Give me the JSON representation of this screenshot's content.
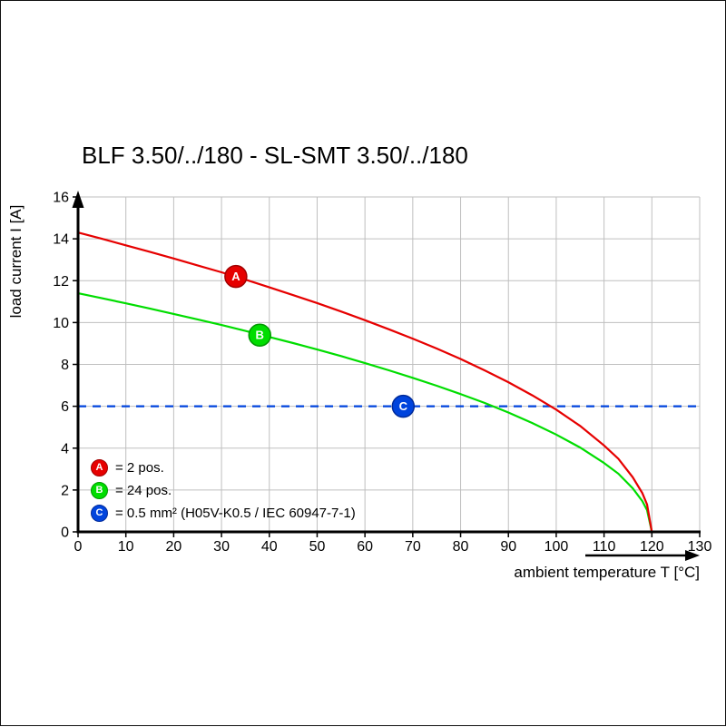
{
  "title": "BLF 3.50/../180 - SL-SMT 3.50/../180",
  "chart_data": {
    "type": "line",
    "title": "BLF 3.50/../180 - SL-SMT 3.50/../180",
    "xlabel": "ambient temperature T [°C]",
    "ylabel": "load current I [A]",
    "xlim": [
      0,
      130
    ],
    "ylim": [
      0,
      16
    ],
    "xticks": [
      0,
      10,
      20,
      30,
      40,
      50,
      60,
      70,
      80,
      90,
      100,
      110,
      120,
      130
    ],
    "yticks": [
      0,
      2,
      4,
      6,
      8,
      10,
      12,
      14,
      16
    ],
    "grid": true,
    "legend_position": "bottom-left-inside",
    "series": [
      {
        "name": "A",
        "legend_label": "= 2 pos.",
        "color": "#e60000",
        "edge_color": "#a00000",
        "style": "solid",
        "marker": {
          "letter": "A",
          "x": 33,
          "y": 12.2
        },
        "points": [
          [
            0,
            14.3
          ],
          [
            5,
            14.0
          ],
          [
            10,
            13.69
          ],
          [
            15,
            13.38
          ],
          [
            20,
            13.06
          ],
          [
            25,
            12.73
          ],
          [
            30,
            12.4
          ],
          [
            35,
            12.05
          ],
          [
            40,
            11.68
          ],
          [
            45,
            11.31
          ],
          [
            50,
            10.93
          ],
          [
            55,
            10.53
          ],
          [
            60,
            10.11
          ],
          [
            65,
            9.68
          ],
          [
            70,
            9.23
          ],
          [
            75,
            8.76
          ],
          [
            80,
            8.26
          ],
          [
            85,
            7.72
          ],
          [
            90,
            7.15
          ],
          [
            95,
            6.52
          ],
          [
            100,
            5.84
          ],
          [
            105,
            5.06
          ],
          [
            110,
            4.13
          ],
          [
            113,
            3.49
          ],
          [
            116,
            2.61
          ],
          [
            118,
            1.85
          ],
          [
            119,
            1.31
          ],
          [
            120,
            0
          ]
        ]
      },
      {
        "name": "B",
        "legend_label": "= 24 pos.",
        "color": "#00dd00",
        "edge_color": "#009900",
        "style": "solid",
        "marker": {
          "letter": "B",
          "x": 38,
          "y": 9.4
        },
        "points": [
          [
            0,
            11.4
          ],
          [
            5,
            11.16
          ],
          [
            10,
            10.92
          ],
          [
            15,
            10.67
          ],
          [
            20,
            10.41
          ],
          [
            25,
            10.15
          ],
          [
            30,
            9.88
          ],
          [
            35,
            9.6
          ],
          [
            40,
            9.31
          ],
          [
            45,
            9.02
          ],
          [
            50,
            8.71
          ],
          [
            55,
            8.4
          ],
          [
            60,
            8.06
          ],
          [
            65,
            7.72
          ],
          [
            70,
            7.36
          ],
          [
            75,
            6.98
          ],
          [
            80,
            6.58
          ],
          [
            85,
            6.16
          ],
          [
            90,
            5.7
          ],
          [
            95,
            5.2
          ],
          [
            100,
            4.65
          ],
          [
            105,
            4.03
          ],
          [
            110,
            3.29
          ],
          [
            113,
            2.78
          ],
          [
            116,
            2.08
          ],
          [
            118,
            1.47
          ],
          [
            119,
            1.04
          ],
          [
            120,
            0
          ]
        ]
      },
      {
        "name": "C",
        "legend_label": "= 0.5 mm² (H05V-K0.5 / IEC 60947-7-1)",
        "color": "#0044dd",
        "edge_color": "#002a99",
        "style": "dashed",
        "marker": {
          "letter": "C",
          "x": 68,
          "y": 6
        },
        "points": [
          [
            0,
            6
          ],
          [
            130,
            6
          ]
        ]
      }
    ]
  }
}
